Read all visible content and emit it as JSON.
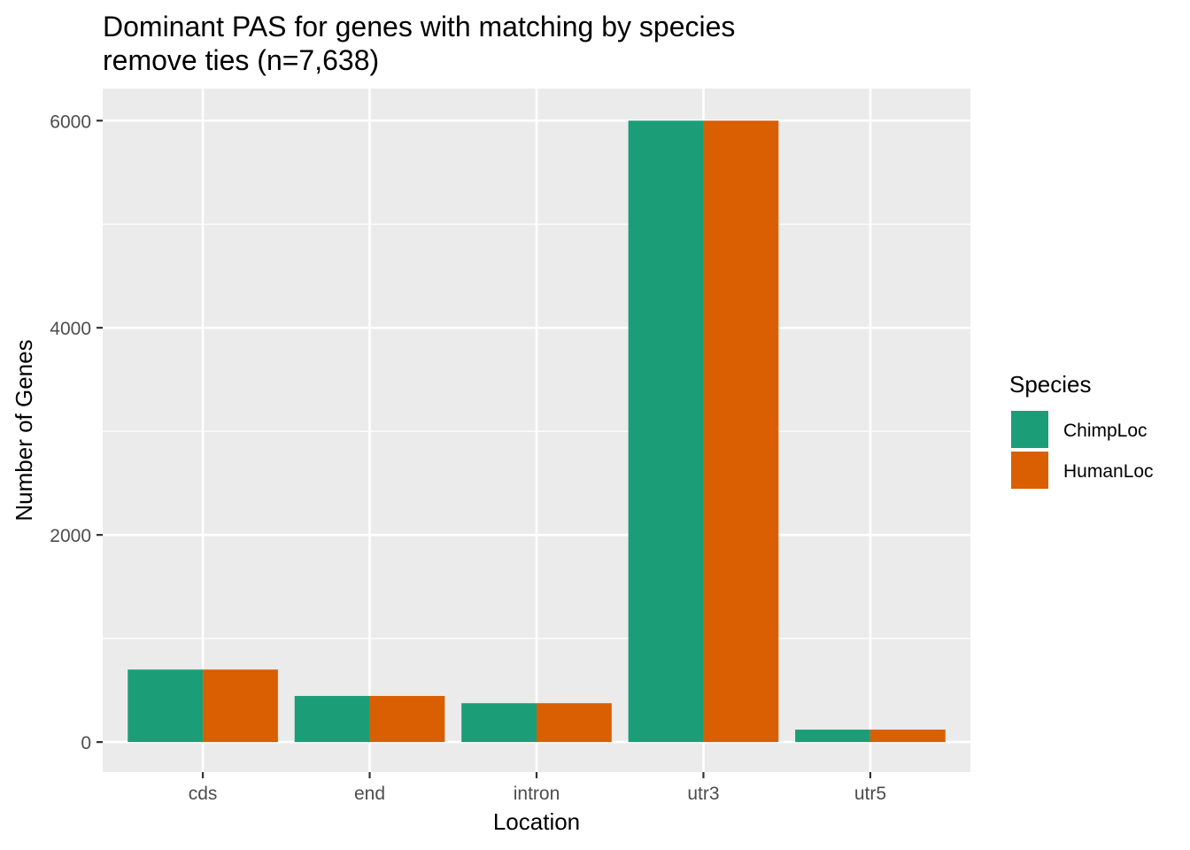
{
  "chart_data": {
    "type": "bar",
    "title_lines": [
      "Dominant PAS for genes with matching by species",
      "remove ties (n=7,638)"
    ],
    "xlabel": "Location",
    "ylabel": "Number of Genes",
    "categories": [
      "cds",
      "end",
      "intron",
      "utr3",
      "utr5"
    ],
    "series": [
      {
        "name": "ChimpLoc",
        "values": [
          700,
          445,
          375,
          6000,
          120
        ],
        "color": "#1b9e77"
      },
      {
        "name": "HumanLoc",
        "values": [
          700,
          445,
          375,
          6000,
          120
        ],
        "color": "#d95f02"
      }
    ],
    "ylim": [
      -290,
      6310
    ],
    "yticks": [
      0,
      2000,
      4000,
      6000
    ],
    "ytick_labels": [
      "0",
      "2000",
      "4000",
      "6000"
    ],
    "grid": true,
    "panel_background": "#ebebeb",
    "grid_color": "#ffffff",
    "legend": {
      "title": "Species",
      "placement": "right"
    }
  }
}
